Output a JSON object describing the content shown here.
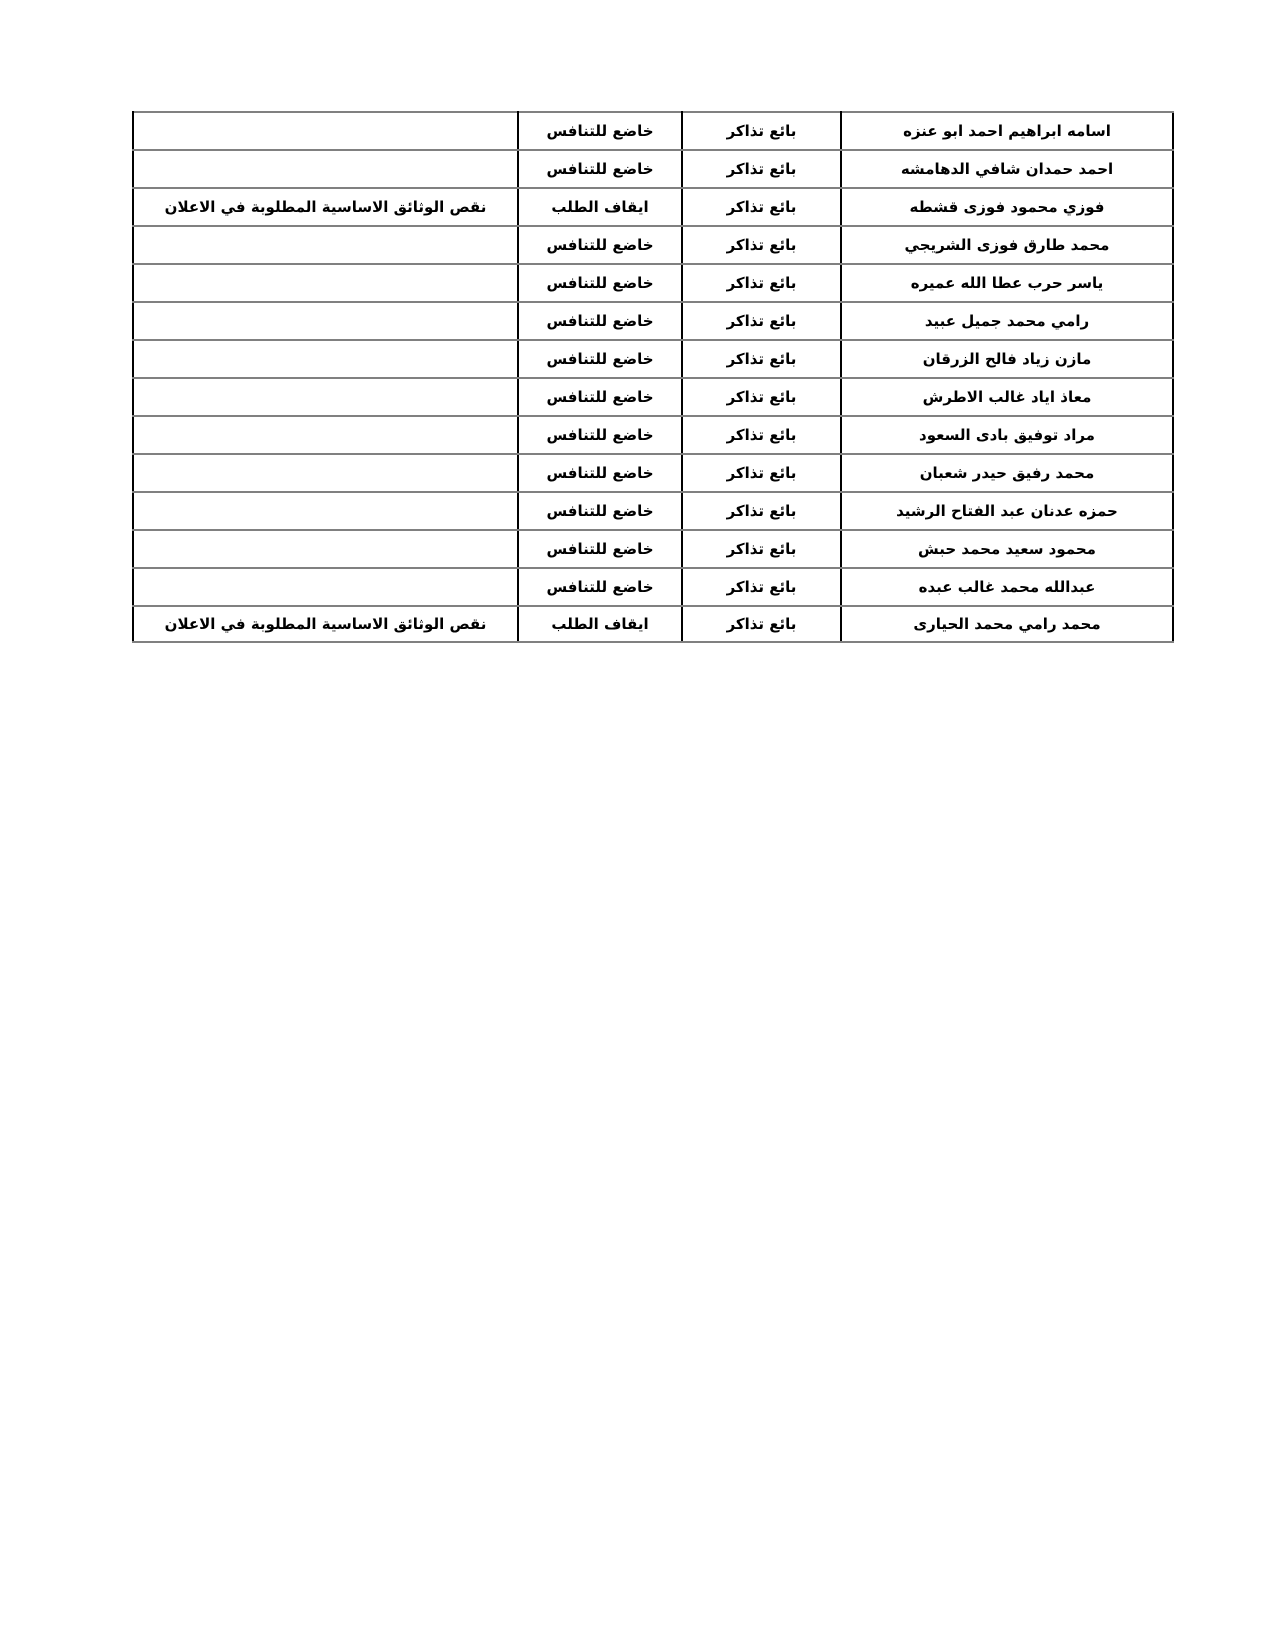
{
  "document": {
    "background_color": "#ffffff",
    "text_color": "#000000"
  },
  "table": {
    "direction": "rtl",
    "row_divider_color": "#808080",
    "column_divider_color": "#000000",
    "column_keys": [
      "name",
      "job_title",
      "status",
      "note"
    ],
    "rows": [
      {
        "name": "اسامه ابراهيم احمد ابو عنزه",
        "job_title": "بائع تذاكر",
        "status": "خاضع للتنافس",
        "note": ""
      },
      {
        "name": "احمد حمدان شافي الدهامشه",
        "job_title": "بائع تذاكر",
        "status": "خاضع للتنافس",
        "note": ""
      },
      {
        "name": "فوزي محمود فوزى قشطه",
        "job_title": "بائع تذاكر",
        "status": "ايقاف الطلب",
        "note": "نقص الوثائق الاساسية المطلوبة في الاعلان"
      },
      {
        "name": "محمد طارق فوزى الشريجي",
        "job_title": "بائع تذاكر",
        "status": "خاضع للتنافس",
        "note": ""
      },
      {
        "name": "ياسر حرب عطا الله عميره",
        "job_title": "بائع تذاكر",
        "status": "خاضع للتنافس",
        "note": ""
      },
      {
        "name": "رامي محمد جميل عبيد",
        "job_title": "بائع تذاكر",
        "status": "خاضع للتنافس",
        "note": ""
      },
      {
        "name": "مازن زياد فالح الزرقان",
        "job_title": "بائع تذاكر",
        "status": "خاضع للتنافس",
        "note": ""
      },
      {
        "name": "معاذ اياد غالب الاطرش",
        "job_title": "بائع تذاكر",
        "status": "خاضع للتنافس",
        "note": ""
      },
      {
        "name": "مراد توفيق بادى السعود",
        "job_title": "بائع تذاكر",
        "status": "خاضع للتنافس",
        "note": ""
      },
      {
        "name": "محمد رفيق حيدر شعبان",
        "job_title": "بائع تذاكر",
        "status": "خاضع للتنافس",
        "note": ""
      },
      {
        "name": "حمزه عدنان عبد الفتاح الرشيد",
        "job_title": "بائع تذاكر",
        "status": "خاضع للتنافس",
        "note": ""
      },
      {
        "name": "محمود سعيد محمد حبش",
        "job_title": "بائع تذاكر",
        "status": "خاضع للتنافس",
        "note": ""
      },
      {
        "name": "عبدالله محمد غالب عبده",
        "job_title": "بائع تذاكر",
        "status": "خاضع للتنافس",
        "note": ""
      },
      {
        "name": "محمد رامي محمد الحيارى",
        "job_title": "بائع تذاكر",
        "status": "ايقاف الطلب",
        "note": "نقص الوثائق الاساسية المطلوبة في الاعلان"
      }
    ]
  }
}
